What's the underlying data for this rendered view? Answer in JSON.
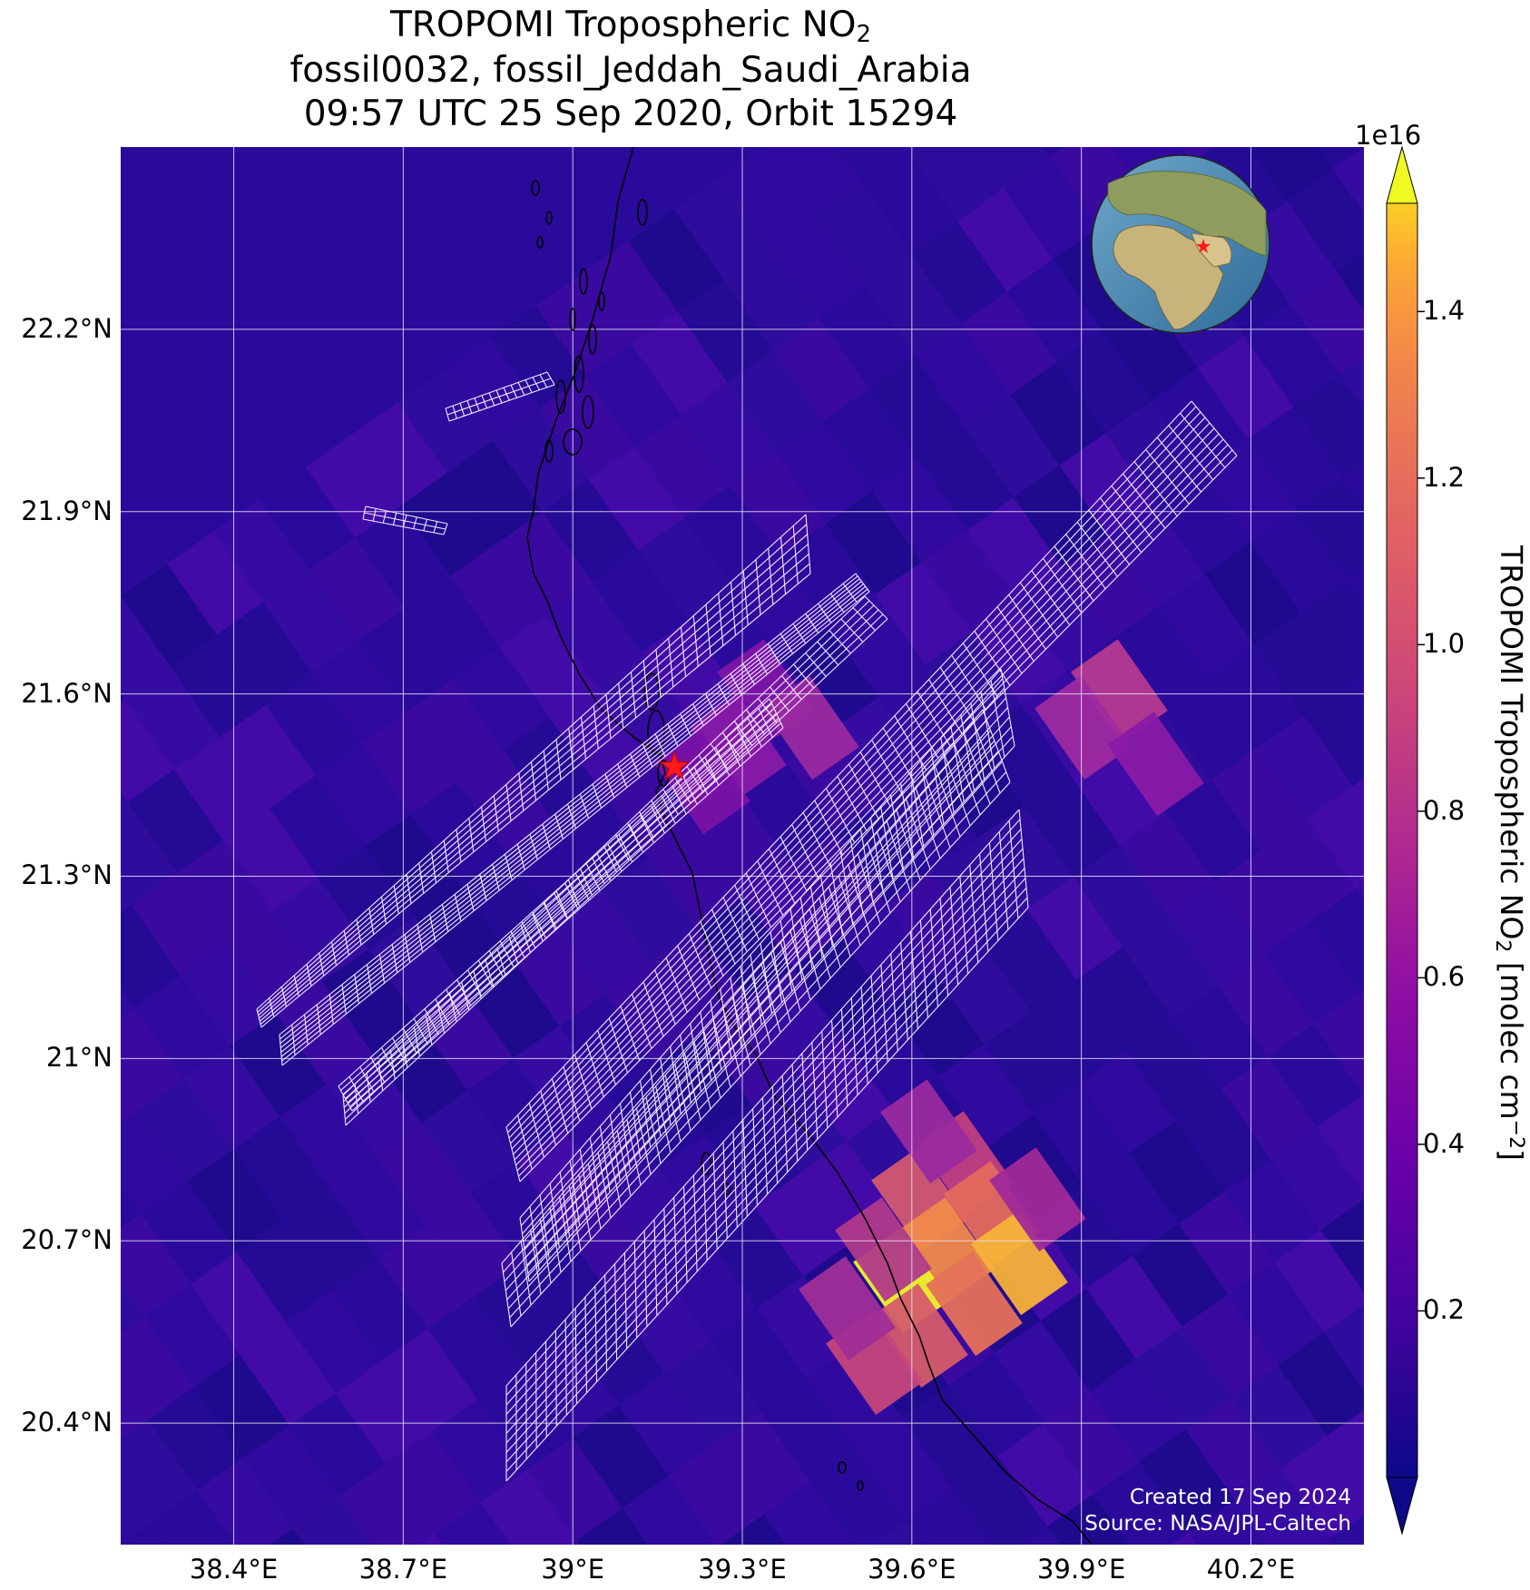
{
  "title": {
    "line1_main": "TROPOMI Tropospheric NO",
    "line1_sub": "2",
    "line2": "fossil0032, fossil_Jeddah_Saudi_Arabia",
    "line3": "09:57 UTC 25 Sep 2020, Orbit 15294"
  },
  "map": {
    "lon_range": [
      38.2,
      40.4
    ],
    "lat_range": [
      20.2,
      22.5
    ],
    "lat_ticks": [
      "22.2°N",
      "21.9°N",
      "21.6°N",
      "21.3°N",
      "21°N",
      "20.7°N",
      "20.4°N"
    ],
    "lat_values": [
      22.2,
      21.9,
      21.6,
      21.3,
      21.0,
      20.7,
      20.4
    ],
    "lon_ticks": [
      "38.4°E",
      "38.7°E",
      "39°E",
      "39.3°E",
      "39.6°E",
      "39.9°E",
      "40.2°E"
    ],
    "lon_values": [
      38.4,
      38.7,
      39.0,
      39.3,
      39.6,
      39.9,
      40.2
    ],
    "target": {
      "name": "Jeddah",
      "lon": 39.18,
      "lat": 21.48,
      "marker": "red-star-icon"
    },
    "credit_line1": "Created 17 Sep 2024",
    "credit_line2": "Source: NASA/JPL-Caltech",
    "inset": "globe-icon"
  },
  "colorbar": {
    "exponent": "1e16",
    "ticks": [
      "0.2",
      "0.4",
      "0.6",
      "0.8",
      "1.0",
      "1.2",
      "1.4"
    ],
    "tick_values": [
      0.2,
      0.4,
      0.6,
      0.8,
      1.0,
      1.2,
      1.4
    ],
    "range": [
      0.0,
      1.53
    ],
    "colormap": "plasma",
    "label_main": "TROPOMI Tropospheric NO",
    "label_sub": "2",
    "label_units_pre": " [molec cm",
    "label_sup": "−2",
    "label_units_post": "]"
  }
}
